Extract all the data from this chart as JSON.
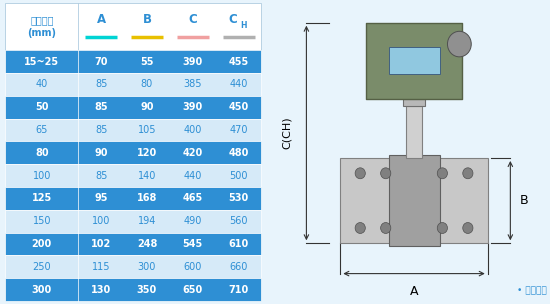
{
  "header_col": "仪表口径\n(mm)",
  "header_cols": [
    "A",
    "B",
    "C",
    "CH"
  ],
  "col_underline_colors": [
    "#00d4d4",
    "#e8c000",
    "#f0a0a0",
    "#b0b0b0"
  ],
  "rows": [
    [
      "15~25",
      "70",
      "55",
      "390",
      "455"
    ],
    [
      "40",
      "85",
      "80",
      "385",
      "440"
    ],
    [
      "50",
      "85",
      "90",
      "390",
      "450"
    ],
    [
      "65",
      "85",
      "105",
      "400",
      "470"
    ],
    [
      "80",
      "90",
      "120",
      "420",
      "480"
    ],
    [
      "100",
      "85",
      "140",
      "440",
      "500"
    ],
    [
      "125",
      "95",
      "168",
      "465",
      "530"
    ],
    [
      "150",
      "100",
      "194",
      "490",
      "560"
    ],
    [
      "200",
      "102",
      "248",
      "545",
      "610"
    ],
    [
      "250",
      "115",
      "300",
      "600",
      "660"
    ],
    [
      "300",
      "130",
      "350",
      "650",
      "710"
    ]
  ],
  "dark_bg": "#2e8fd4",
  "light_bg": "#d6eaf8",
  "row_dark_indices": [
    0,
    2,
    4,
    6,
    8,
    10
  ],
  "text_color_dark": "#ffffff",
  "text_color_light": "#2e8fd4",
  "header_text_color": "#2e8fd4",
  "header_bg": "#ffffff",
  "outer_bg": "#e8f4fc",
  "diagram_note": "• 常规仪表",
  "diagram_label_C": "C(CH)",
  "diagram_label_B": "B",
  "diagram_label_A": "A"
}
